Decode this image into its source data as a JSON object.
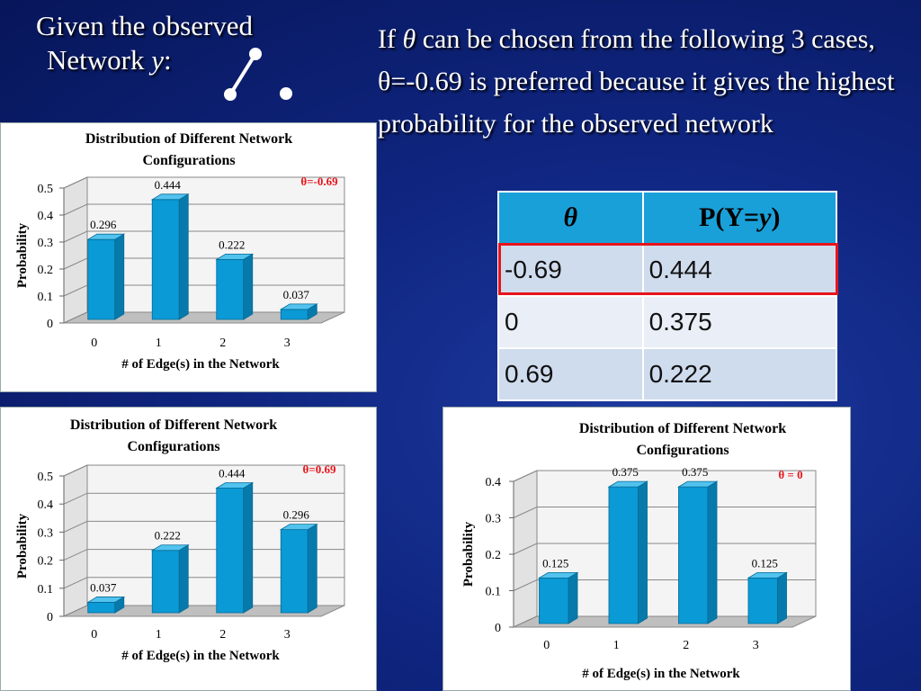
{
  "heading": {
    "line1": "Given the observed",
    "line2_prefix": "Network ",
    "line2_var": "y",
    "line2_suffix": ":"
  },
  "statement": {
    "prefix": "If ",
    "theta": "θ",
    "rest": "  can be chosen from the following 3 cases, θ=-0.69 is preferred because it gives the highest probability for the observed network"
  },
  "table": {
    "header_theta": "θ",
    "header_prob_prefix": "P(Y=",
    "header_prob_var": "y",
    "header_prob_suffix": ")",
    "rows": [
      {
        "theta": "-0.69",
        "prob": "0.444"
      },
      {
        "theta": "0",
        "prob": "0.375"
      },
      {
        "theta": "0.69",
        "prob": "0.222"
      }
    ]
  },
  "colors": {
    "bar": "#0a9ad6",
    "bar_dark": "#077aab",
    "bar_top": "#52c3ee",
    "annotation": "#e8141b",
    "highlight": "#e8141b"
  },
  "chart_data": [
    {
      "type": "bar",
      "title": "Distribution of  Different Network Configurations",
      "xlabel": "# of  Edge(s) in the Network",
      "ylabel": "Probability",
      "categories": [
        "0",
        "1",
        "2",
        "3"
      ],
      "values": [
        0.296,
        0.444,
        0.222,
        0.037
      ],
      "value_labels": [
        "0.296",
        "0.444",
        "0.222",
        "0.037"
      ],
      "ylim": [
        0,
        0.5
      ],
      "yticks": [
        "0",
        "0.1",
        "0.2",
        "0.3",
        "0.4",
        "0.5"
      ],
      "annotation": "θ=-0.69"
    },
    {
      "type": "bar",
      "title": "Distribution of  Different Network Configurations",
      "xlabel": "# of  Edge(s) in the Network",
      "ylabel": "Probability",
      "categories": [
        "0",
        "1",
        "2",
        "3"
      ],
      "values": [
        0.037,
        0.222,
        0.444,
        0.296
      ],
      "value_labels": [
        "0.037",
        "0.222",
        "0.444",
        "0.296"
      ],
      "ylim": [
        0,
        0.5
      ],
      "yticks": [
        "0",
        "0.1",
        "0.2",
        "0.3",
        "0.4",
        "0.5"
      ],
      "annotation": "θ=0.69"
    },
    {
      "type": "bar",
      "title": "Distribution of  Different Network Configurations",
      "xlabel": "# of  Edge(s) in the Network",
      "ylabel": "Probability",
      "categories": [
        "0",
        "1",
        "2",
        "3"
      ],
      "values": [
        0.125,
        0.375,
        0.375,
        0.125
      ],
      "value_labels": [
        "0.125",
        "0.375",
        "0.375",
        "0.125"
      ],
      "ylim": [
        0,
        0.4
      ],
      "yticks": [
        "0",
        "0.1",
        "0.2",
        "0.3",
        "0.4"
      ],
      "annotation": "θ = 0"
    }
  ]
}
